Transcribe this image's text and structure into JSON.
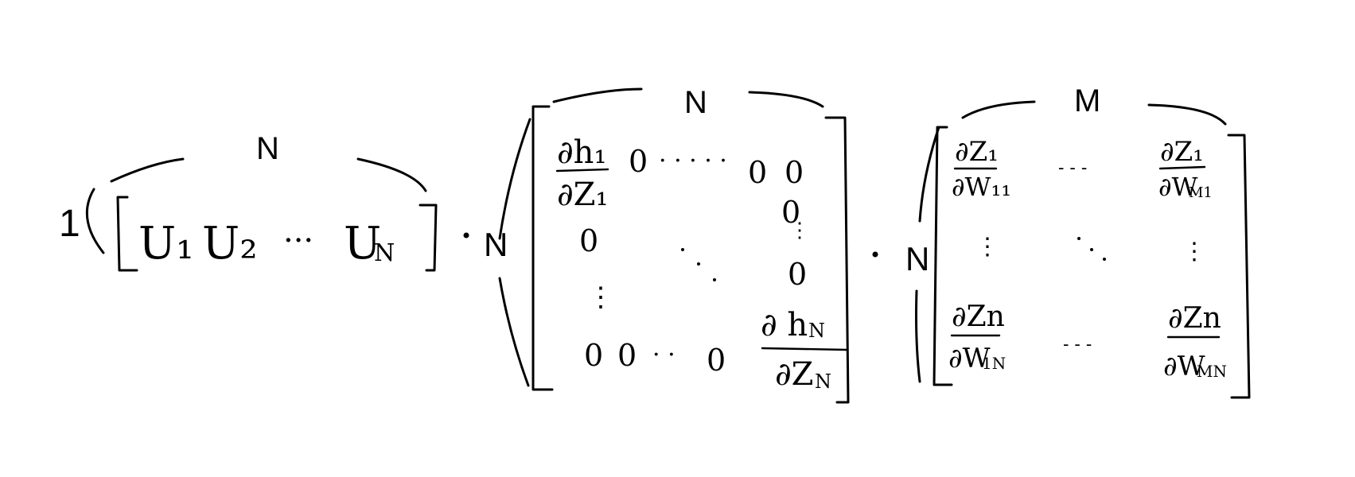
{
  "vector": {
    "rows_label": "1",
    "cols_label": "N",
    "entries": [
      "U₁",
      "U₂",
      "···",
      "U",
      "N"
    ]
  },
  "dot_operator": "·",
  "matrix_h": {
    "rows_label": "N",
    "cols_label": "N",
    "top_left": {
      "num": "∂h₁",
      "den": "∂Z₁"
    },
    "bottom_right": {
      "num": "∂ h",
      "num_sub": "N",
      "den": "∂Z",
      "den_sub": "N"
    },
    "zero": "0"
  },
  "matrix_w": {
    "rows_label": "N",
    "cols_label": "M",
    "top_left": {
      "num": "∂Z₁",
      "den": "∂W₁₁"
    },
    "top_right": {
      "num": "∂Z₁",
      "den": "∂W",
      "den_sub": "M1"
    },
    "bottom_left": {
      "num": "∂Zn",
      "den": "∂W",
      "den_sub": "1N"
    },
    "bottom_right": {
      "num": "∂Zn",
      "den": "∂W",
      "den_sub": "MN"
    },
    "hdots": "- - -"
  },
  "colors": {
    "ink": "#000000",
    "background": "#ffffff"
  }
}
